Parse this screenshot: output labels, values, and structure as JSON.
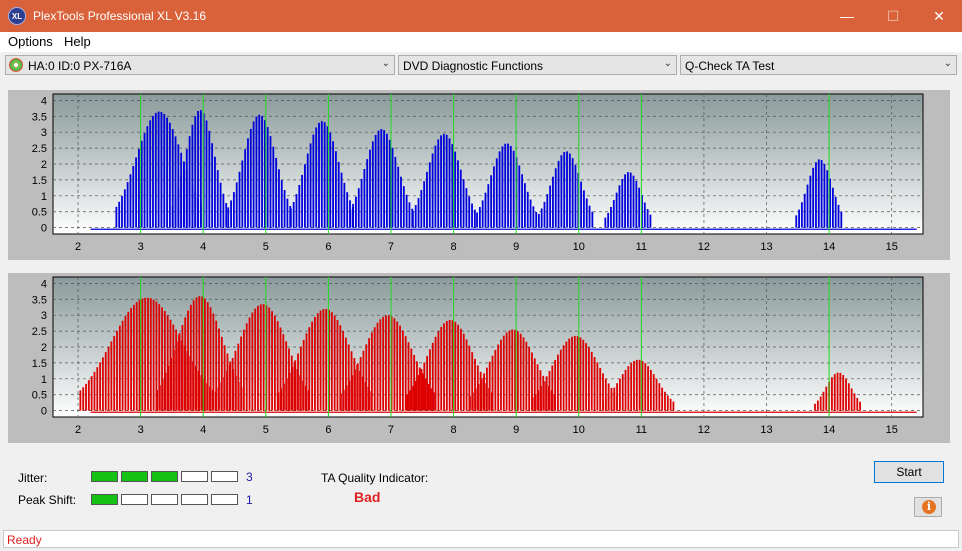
{
  "window": {
    "title": "PlexTools Professional XL V3.16",
    "app_icon_text": "XL",
    "min_glyph": "—",
    "max_glyph": "☐",
    "close_glyph": "✕"
  },
  "menu": {
    "options": "Options",
    "help": "Help"
  },
  "toolbar": {
    "drive": "HA:0 ID:0  PX-716A",
    "function": "DVD Diagnostic Functions",
    "test": "Q-Check TA Test",
    "dropdown_glyph": "⌄"
  },
  "chart_data": [
    {
      "type": "bar",
      "name_hint": "top",
      "color": "#0000dd",
      "x_ticks": [
        2,
        3,
        4,
        5,
        6,
        7,
        8,
        9,
        10,
        11,
        12,
        13,
        14,
        15
      ],
      "y_ticks": [
        0,
        0.5,
        1,
        1.5,
        2,
        2.5,
        3,
        3.5,
        4
      ],
      "xlim": [
        1.6,
        15.5
      ],
      "ylim": [
        -0.2,
        4.2
      ],
      "green_lines": [
        3,
        4,
        5,
        6,
        7,
        8,
        9,
        10,
        11,
        14
      ],
      "peaks": [
        {
          "center": 3.3,
          "height": 3.65,
          "half_width": 0.55
        },
        {
          "center": 3.95,
          "height": 3.7,
          "half_width": 0.35
        },
        {
          "center": 4.9,
          "height": 3.55,
          "half_width": 0.4
        },
        {
          "center": 5.9,
          "height": 3.35,
          "half_width": 0.4
        },
        {
          "center": 6.85,
          "height": 3.1,
          "half_width": 0.4
        },
        {
          "center": 7.85,
          "height": 2.95,
          "half_width": 0.4
        },
        {
          "center": 8.85,
          "height": 2.65,
          "half_width": 0.38
        },
        {
          "center": 9.8,
          "height": 2.4,
          "half_width": 0.35
        },
        {
          "center": 10.8,
          "height": 1.75,
          "half_width": 0.3
        },
        {
          "center": 13.85,
          "height": 2.15,
          "half_width": 0.3
        }
      ]
    },
    {
      "type": "bar",
      "name_hint": "bottom",
      "color": "#dd0000",
      "x_ticks": [
        2,
        3,
        4,
        5,
        6,
        7,
        8,
        9,
        10,
        11,
        12,
        13,
        14,
        15
      ],
      "y_ticks": [
        0,
        0.5,
        1,
        1.5,
        2,
        2.5,
        3,
        3.5,
        4
      ],
      "xlim": [
        1.6,
        15.5
      ],
      "ylim": [
        -0.2,
        4.2
      ],
      "green_lines": [
        3,
        4,
        5,
        6,
        7,
        8,
        9,
        10,
        11,
        14
      ],
      "peaks": [
        {
          "center": 3.1,
          "height": 3.55,
          "half_width": 0.85
        },
        {
          "center": 3.95,
          "height": 3.6,
          "half_width": 0.55
        },
        {
          "center": 4.95,
          "height": 3.35,
          "half_width": 0.6
        },
        {
          "center": 5.95,
          "height": 3.2,
          "half_width": 0.6
        },
        {
          "center": 6.95,
          "height": 3.0,
          "half_width": 0.6
        },
        {
          "center": 7.95,
          "height": 2.85,
          "half_width": 0.55
        },
        {
          "center": 8.95,
          "height": 2.55,
          "half_width": 0.55
        },
        {
          "center": 9.95,
          "height": 2.35,
          "half_width": 0.55
        },
        {
          "center": 10.95,
          "height": 1.6,
          "half_width": 0.45
        },
        {
          "center": 14.15,
          "height": 1.2,
          "half_width": 0.3
        }
      ]
    }
  ],
  "metrics": {
    "jitter_label": "Jitter:",
    "jitter_level": 3,
    "jitter_value": "3",
    "peak_shift_label": "Peak Shift:",
    "peak_shift_level": 1,
    "peak_shift_value": "1",
    "segments": 5
  },
  "ta_quality": {
    "label": "TA Quality Indicator:",
    "value": "Bad"
  },
  "buttons": {
    "start": "Start",
    "info_glyph": "i"
  },
  "status": {
    "text": "Ready"
  }
}
